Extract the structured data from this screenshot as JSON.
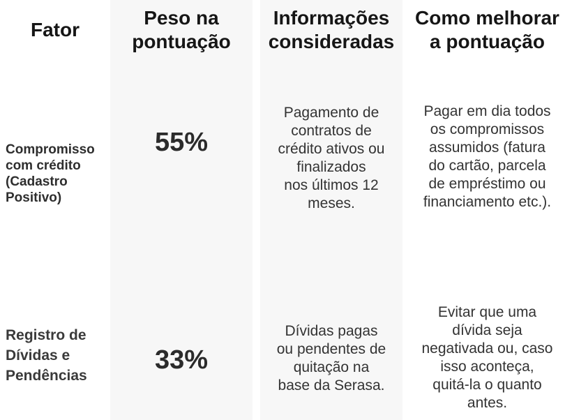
{
  "table": {
    "stripe_color": "#f7f7f7",
    "text_color": "#333333",
    "header_color": "#161616",
    "headers": {
      "factor": "Fator",
      "weight": "Peso na\npontuação",
      "info": "Informações\nconsideradas",
      "improve": "Como melhorar\na pontuação"
    },
    "rows": [
      {
        "factor": "Compromisso\ncom crédito\n(Cadastro\nPositivo)",
        "weight": "55%",
        "info": "Pagamento de\ncontratos de\ncrédito ativos ou\nfinalizados\nnos últimos 12\nmeses.",
        "improve": "Pagar em dia todos\nos compromissos\nassumidos (fatura\ndo cartão, parcela\nde empréstimo ou\nfinanciamento etc.)."
      },
      {
        "factor": "Registro de\nDívidas e\nPendências",
        "weight": "33%",
        "info": "Dívidas pagas\nou pendentes de\nquitação na\nbase da Serasa.",
        "improve": "Evitar que uma\ndívida seja\nnegativada ou, caso\nisso aconteça,\nquitá-la o quanto\nantes."
      }
    ]
  }
}
